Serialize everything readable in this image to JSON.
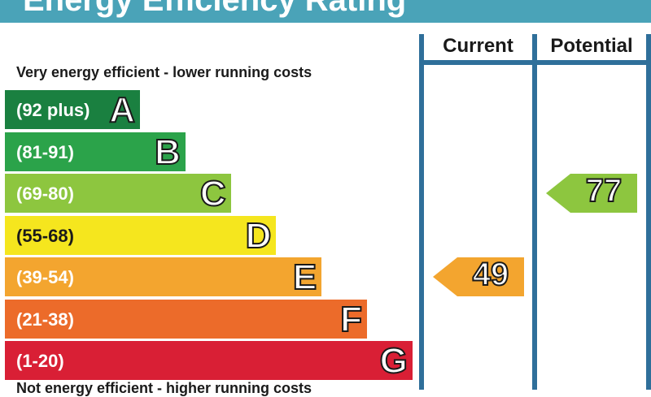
{
  "title": "Energy Efficiency Rating",
  "top_note": "Very energy efficient - lower running costs",
  "bottom_note": "Not energy efficient - higher running costs",
  "columns": {
    "current": "Current",
    "potential": "Potential"
  },
  "chart_data": {
    "type": "bar",
    "bands": [
      {
        "range": "(92 plus)",
        "grade": "A",
        "color": "#1a8040"
      },
      {
        "range": "(81-91)",
        "grade": "B",
        "color": "#2ba34a"
      },
      {
        "range": "(69-80)",
        "grade": "C",
        "color": "#8dc63f"
      },
      {
        "range": "(55-68)",
        "grade": "D",
        "color": "#f5e61e"
      },
      {
        "range": "(39-54)",
        "grade": "E",
        "color": "#f3a52f"
      },
      {
        "range": "(21-38)",
        "grade": "F",
        "color": "#ec6b2a"
      },
      {
        "range": "(1-20)",
        "grade": "G",
        "color": "#d91f35"
      }
    ],
    "current": {
      "value": 49,
      "band": "E",
      "color": "#f3a52f"
    },
    "potential": {
      "value": 77,
      "band": "C",
      "color": "#8dc63f"
    }
  }
}
